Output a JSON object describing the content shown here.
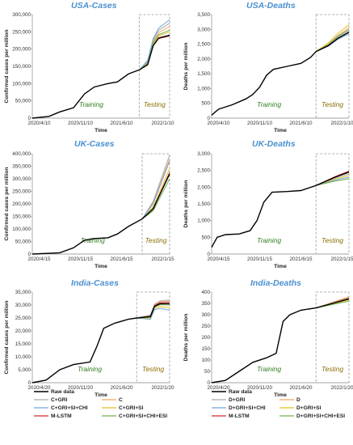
{
  "series_styles": [
    {
      "key": "raw",
      "color": "#000000"
    },
    {
      "key": "m1",
      "color": "#f4a460"
    },
    {
      "key": "m2",
      "color": "#a9a9a9"
    },
    {
      "key": "m3",
      "color": "#e8c020"
    },
    {
      "key": "m4",
      "color": "#6fa8dc"
    },
    {
      "key": "m5",
      "color": "#70b050"
    },
    {
      "key": "m6",
      "color": "#d62728"
    }
  ],
  "chart_data": [
    {
      "type": "line",
      "title": "USA-Cases",
      "ylabel": "Confirmed  cases per million",
      "xlabel": "Time",
      "ylim": [
        0,
        300000
      ],
      "yticks": [
        0,
        50000,
        100000,
        150000,
        200000,
        250000,
        300000
      ],
      "xticks": [
        "2020/4/10",
        "2020/11/10",
        "2021/6/10",
        "2022/1/10"
      ],
      "annotations": {
        "train": "Training",
        "test": "Testing"
      },
      "test_start": 0.78,
      "raw": [
        [
          0,
          0
        ],
        [
          0.12,
          5000
        ],
        [
          0.2,
          18000
        ],
        [
          0.3,
          30000
        ],
        [
          0.38,
          70000
        ],
        [
          0.45,
          90000
        ],
        [
          0.55,
          100000
        ],
        [
          0.62,
          105000
        ],
        [
          0.7,
          128000
        ],
        [
          0.78,
          140000
        ],
        [
          0.84,
          155000
        ],
        [
          0.88,
          210000
        ],
        [
          0.92,
          232000
        ],
        [
          1,
          240000
        ]
      ],
      "pred_end": [
        265000,
        275000,
        250000,
        285000,
        255000,
        238000
      ]
    },
    {
      "type": "line",
      "title": "USA-Deaths",
      "ylabel": "Deaths per million",
      "xlabel": "Time",
      "ylim": [
        0,
        3500
      ],
      "yticks": [
        0,
        500,
        1000,
        1500,
        2000,
        2500,
        3000,
        3500
      ],
      "xticks": [
        "2020/4/10",
        "2020/11/10",
        "2021/6/10",
        "2022/1/10"
      ],
      "annotations": {
        "train": "Training",
        "test": "Testing"
      },
      "test_start": 0.76,
      "raw": [
        [
          0,
          100
        ],
        [
          0.05,
          300
        ],
        [
          0.15,
          450
        ],
        [
          0.25,
          650
        ],
        [
          0.3,
          800
        ],
        [
          0.35,
          1050
        ],
        [
          0.4,
          1450
        ],
        [
          0.45,
          1650
        ],
        [
          0.55,
          1750
        ],
        [
          0.65,
          1850
        ],
        [
          0.72,
          2050
        ],
        [
          0.76,
          2250
        ],
        [
          0.85,
          2450
        ],
        [
          0.92,
          2700
        ],
        [
          1,
          2900
        ]
      ],
      "pred_end": [
        3050,
        2950,
        3150,
        2850,
        3000,
        2900
      ]
    },
    {
      "type": "line",
      "title": "UK-Cases",
      "ylabel": "Confirmed  cases per million",
      "xlabel": "Time",
      "ylim": [
        0,
        400000
      ],
      "yticks": [
        0,
        50000,
        100000,
        150000,
        200000,
        250000,
        300000,
        350000,
        400000
      ],
      "xticks": [
        "2020/4/15",
        "2020/11/15",
        "2021/6/15",
        "2022/1/15"
      ],
      "annotations": {
        "train": "Training",
        "test": "Testing"
      },
      "test_start": 0.8,
      "raw": [
        [
          0,
          0
        ],
        [
          0.2,
          5000
        ],
        [
          0.3,
          25000
        ],
        [
          0.38,
          55000
        ],
        [
          0.45,
          62000
        ],
        [
          0.55,
          65000
        ],
        [
          0.62,
          80000
        ],
        [
          0.7,
          110000
        ],
        [
          0.8,
          140000
        ],
        [
          0.88,
          180000
        ],
        [
          0.94,
          250000
        ],
        [
          1,
          320000
        ]
      ],
      "pred_end": [
        380000,
        395000,
        340000,
        370000,
        300000,
        325000
      ]
    },
    {
      "type": "line",
      "title": "UK-Deaths",
      "ylabel": "Deaths per million",
      "xlabel": "Time",
      "ylim": [
        0,
        3000
      ],
      "yticks": [
        0,
        500,
        1000,
        1500,
        2000,
        2500,
        3000
      ],
      "xticks": [
        "2020/4/15",
        "2020/11/15",
        "2021/6/15",
        "2022/1/15"
      ],
      "annotations": {
        "train": "Training",
        "test": "Testing"
      },
      "test_start": 0.76,
      "raw": [
        [
          0,
          200
        ],
        [
          0.04,
          500
        ],
        [
          0.1,
          580
        ],
        [
          0.2,
          600
        ],
        [
          0.28,
          700
        ],
        [
          0.33,
          1000
        ],
        [
          0.38,
          1550
        ],
        [
          0.44,
          1850
        ],
        [
          0.55,
          1870
        ],
        [
          0.65,
          1900
        ],
        [
          0.76,
          2050
        ],
        [
          0.9,
          2300
        ],
        [
          1,
          2450
        ]
      ],
      "pred_end": [
        2450,
        2400,
        2350,
        2300,
        2250,
        2480
      ]
    },
    {
      "type": "line",
      "title": "India-Cases",
      "ylabel": "Confirmed  cases per million",
      "xlabel": "Time",
      "ylim": [
        0,
        35000
      ],
      "yticks": [
        0,
        5000,
        10000,
        15000,
        20000,
        25000,
        30000,
        35000
      ],
      "xticks": [
        "2020/4/20",
        "2020/11/20",
        "2021/6/20",
        "2022/1/20"
      ],
      "annotations": {
        "train": "Training",
        "test": "Testing"
      },
      "test_start": 0.76,
      "raw": [
        [
          0,
          0
        ],
        [
          0.1,
          1000
        ],
        [
          0.2,
          5000
        ],
        [
          0.3,
          7000
        ],
        [
          0.42,
          8000
        ],
        [
          0.47,
          14000
        ],
        [
          0.52,
          21000
        ],
        [
          0.6,
          23000
        ],
        [
          0.7,
          24500
        ],
        [
          0.76,
          25000
        ],
        [
          0.86,
          25500
        ],
        [
          0.89,
          29500
        ],
        [
          0.93,
          30500
        ],
        [
          1,
          30500
        ]
      ],
      "pred_end": [
        31500,
        32000,
        29000,
        28000,
        30000,
        31000
      ]
    },
    {
      "type": "line",
      "title": "India-Deaths",
      "ylabel": "Deaths per million",
      "xlabel": "Time",
      "ylim": [
        0,
        400
      ],
      "yticks": [
        0,
        50,
        100,
        150,
        200,
        250,
        300,
        350,
        400
      ],
      "xticks": [
        "2020/4/20",
        "2020/11/20",
        "2021/6/20",
        "2022/1/20"
      ],
      "annotations": {
        "train": "Training",
        "test": "Testing"
      },
      "test_start": 0.76,
      "raw": [
        [
          0,
          0
        ],
        [
          0.1,
          10
        ],
        [
          0.2,
          50
        ],
        [
          0.3,
          90
        ],
        [
          0.4,
          110
        ],
        [
          0.47,
          130
        ],
        [
          0.52,
          270
        ],
        [
          0.57,
          300
        ],
        [
          0.65,
          320
        ],
        [
          0.76,
          330
        ],
        [
          0.88,
          350
        ],
        [
          1,
          370
        ]
      ],
      "pred_end": [
        380,
        375,
        365,
        370,
        360,
        372
      ]
    }
  ],
  "legends": [
    {
      "items": [
        {
          "label": "Raw data",
          "key": "raw"
        },
        {
          "label": "C",
          "key": "m1"
        },
        {
          "label": "C+GRI",
          "key": "m2"
        },
        {
          "label": "C+GRI+SI",
          "key": "m3"
        },
        {
          "label": "C+GRI+SI+CHI",
          "key": "m4"
        },
        {
          "label": "C+GRI+SI+CHI+ESI",
          "key": "m5"
        },
        {
          "label": "M-LSTM",
          "key": "m6"
        }
      ]
    },
    {
      "items": [
        {
          "label": "Raw data",
          "key": "raw"
        },
        {
          "label": "D",
          "key": "m1"
        },
        {
          "label": "D+GRI",
          "key": "m2"
        },
        {
          "label": "D+GRI+SI",
          "key": "m3"
        },
        {
          "label": "D+GRI+SI+CHI",
          "key": "m4"
        },
        {
          "label": "D+GRI+SI+CHI+ESI",
          "key": "m5"
        },
        {
          "label": "M-LSTM",
          "key": "m6"
        }
      ]
    }
  ]
}
